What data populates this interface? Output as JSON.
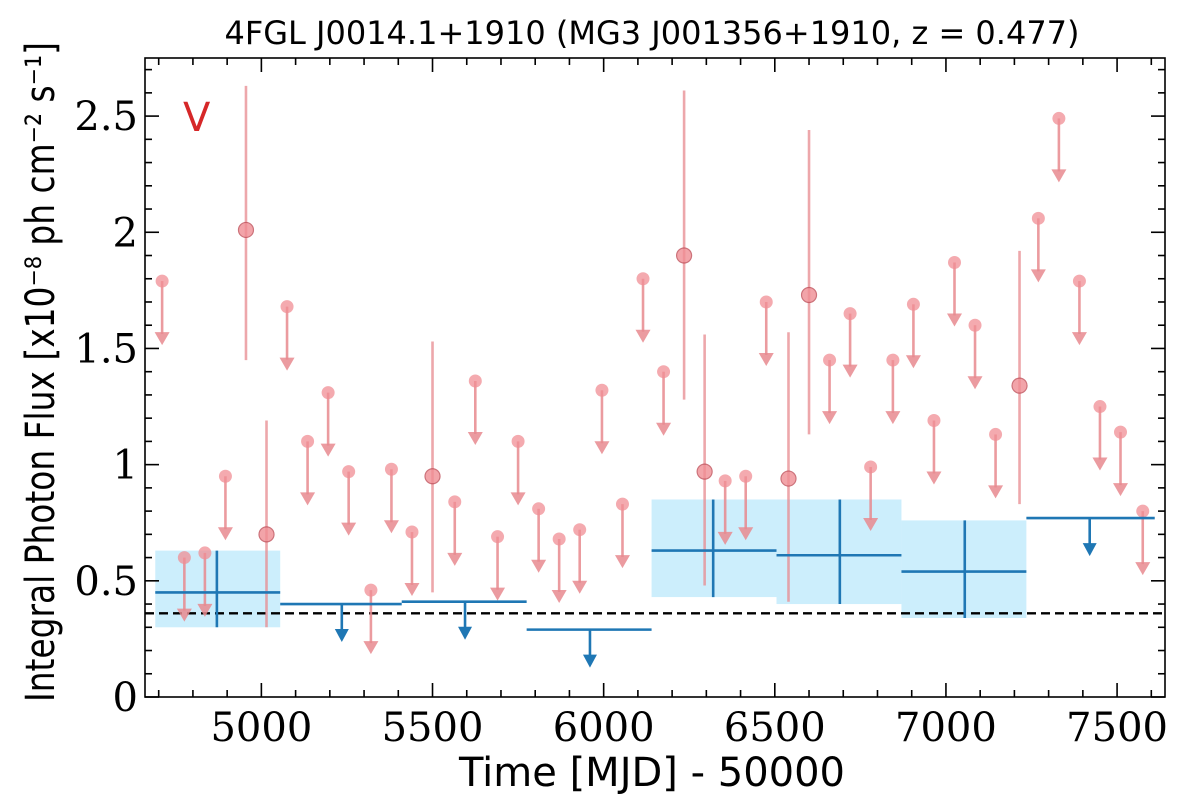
{
  "chart_data": {
    "type": "scatter",
    "title": "4FGL J0014.1+1910 (MG3 J001356+1910, z = 0.477)",
    "xlabel": "Time [MJD] - 50000",
    "ylabel": "Integral Photon Flux [x10⁻⁸ ph cm⁻² s⁻¹]",
    "panel_label": "V",
    "xlim": [
      4660,
      7640
    ],
    "ylim": [
      0,
      2.75
    ],
    "x_ticks": [
      5000,
      5500,
      6000,
      6500,
      7000,
      7500
    ],
    "x_tick_labels": [
      "5000",
      "5500",
      "6000",
      "6500",
      "7000",
      "7500"
    ],
    "y_ticks": [
      0,
      0.5,
      1,
      1.5,
      2,
      2.5
    ],
    "y_tick_labels": [
      "0",
      "0.5",
      "1",
      "1.5",
      "2",
      "2.5"
    ],
    "baseline": 0.36,
    "colors": {
      "short_bins": "#e88a8f",
      "short_bins_fill": "#f08e94",
      "long_bins": "#1f77b4",
      "band": "#cceefc",
      "baseline": "#000000",
      "panel_label": "#d62728"
    },
    "series": [
      {
        "kind": "short_bins",
        "detections": [
          {
            "x": 4955,
            "y": 2.01,
            "ylo": 1.45,
            "yhi": 2.63
          },
          {
            "x": 5015,
            "y": 0.7,
            "ylo": 0.3,
            "yhi": 1.19
          },
          {
            "x": 5500,
            "y": 0.95,
            "ylo": 0.45,
            "yhi": 1.53
          },
          {
            "x": 6235,
            "y": 1.9,
            "ylo": 1.28,
            "yhi": 2.61
          },
          {
            "x": 6295,
            "y": 0.97,
            "ylo": 0.48,
            "yhi": 1.56
          },
          {
            "x": 6540,
            "y": 0.94,
            "ylo": 0.41,
            "yhi": 1.57
          },
          {
            "x": 6600,
            "y": 1.73,
            "ylo": 1.13,
            "yhi": 2.44
          },
          {
            "x": 7215,
            "y": 1.34,
            "ylo": 0.83,
            "yhi": 1.92
          }
        ],
        "upper_limits": [
          {
            "x": 4710,
            "y": 1.79
          },
          {
            "x": 4775,
            "y": 0.6
          },
          {
            "x": 4835,
            "y": 0.62
          },
          {
            "x": 4895,
            "y": 0.95
          },
          {
            "x": 5075,
            "y": 1.68
          },
          {
            "x": 5135,
            "y": 1.1
          },
          {
            "x": 5195,
            "y": 1.31
          },
          {
            "x": 5255,
            "y": 0.97
          },
          {
            "x": 5320,
            "y": 0.46
          },
          {
            "x": 5380,
            "y": 0.98
          },
          {
            "x": 5440,
            "y": 0.71
          },
          {
            "x": 5565,
            "y": 0.84
          },
          {
            "x": 5625,
            "y": 1.36
          },
          {
            "x": 5690,
            "y": 0.69
          },
          {
            "x": 5750,
            "y": 1.1
          },
          {
            "x": 5810,
            "y": 0.81
          },
          {
            "x": 5870,
            "y": 0.68
          },
          {
            "x": 5930,
            "y": 0.72
          },
          {
            "x": 5995,
            "y": 1.32
          },
          {
            "x": 6055,
            "y": 0.83
          },
          {
            "x": 6115,
            "y": 1.8
          },
          {
            "x": 6175,
            "y": 1.4
          },
          {
            "x": 6355,
            "y": 0.93
          },
          {
            "x": 6415,
            "y": 0.95
          },
          {
            "x": 6475,
            "y": 1.7
          },
          {
            "x": 6660,
            "y": 1.45
          },
          {
            "x": 6720,
            "y": 1.65
          },
          {
            "x": 6780,
            "y": 0.99
          },
          {
            "x": 6845,
            "y": 1.45
          },
          {
            "x": 6905,
            "y": 1.69
          },
          {
            "x": 6965,
            "y": 1.19
          },
          {
            "x": 7025,
            "y": 1.87
          },
          {
            "x": 7085,
            "y": 1.6
          },
          {
            "x": 7145,
            "y": 1.13
          },
          {
            "x": 7270,
            "y": 2.06
          },
          {
            "x": 7330,
            "y": 2.49
          },
          {
            "x": 7390,
            "y": 1.79
          },
          {
            "x": 7450,
            "y": 1.25
          },
          {
            "x": 7510,
            "y": 1.14
          },
          {
            "x": 7575,
            "y": 0.8
          }
        ]
      },
      {
        "kind": "long_bins",
        "detections": [
          {
            "x0": 4690,
            "x1": 5055,
            "xc": 4870,
            "y": 0.45,
            "ylo": 0.3,
            "yhi": 0.63
          },
          {
            "x0": 6140,
            "x1": 6505,
            "xc": 6320,
            "y": 0.63,
            "ylo": 0.43,
            "yhi": 0.85
          },
          {
            "x0": 6505,
            "x1": 6870,
            "xc": 6690,
            "y": 0.61,
            "ylo": 0.4,
            "yhi": 0.85
          },
          {
            "x0": 6870,
            "x1": 7235,
            "xc": 7055,
            "y": 0.54,
            "ylo": 0.34,
            "yhi": 0.76
          }
        ],
        "upper_limits": [
          {
            "x0": 5055,
            "x1": 5410,
            "xc": 5235,
            "y": 0.4
          },
          {
            "x0": 5410,
            "x1": 5775,
            "xc": 5595,
            "y": 0.41
          },
          {
            "x0": 5775,
            "x1": 6140,
            "xc": 5960,
            "y": 0.29
          },
          {
            "x0": 7235,
            "x1": 7610,
            "xc": 7420,
            "y": 0.77
          }
        ]
      }
    ]
  }
}
